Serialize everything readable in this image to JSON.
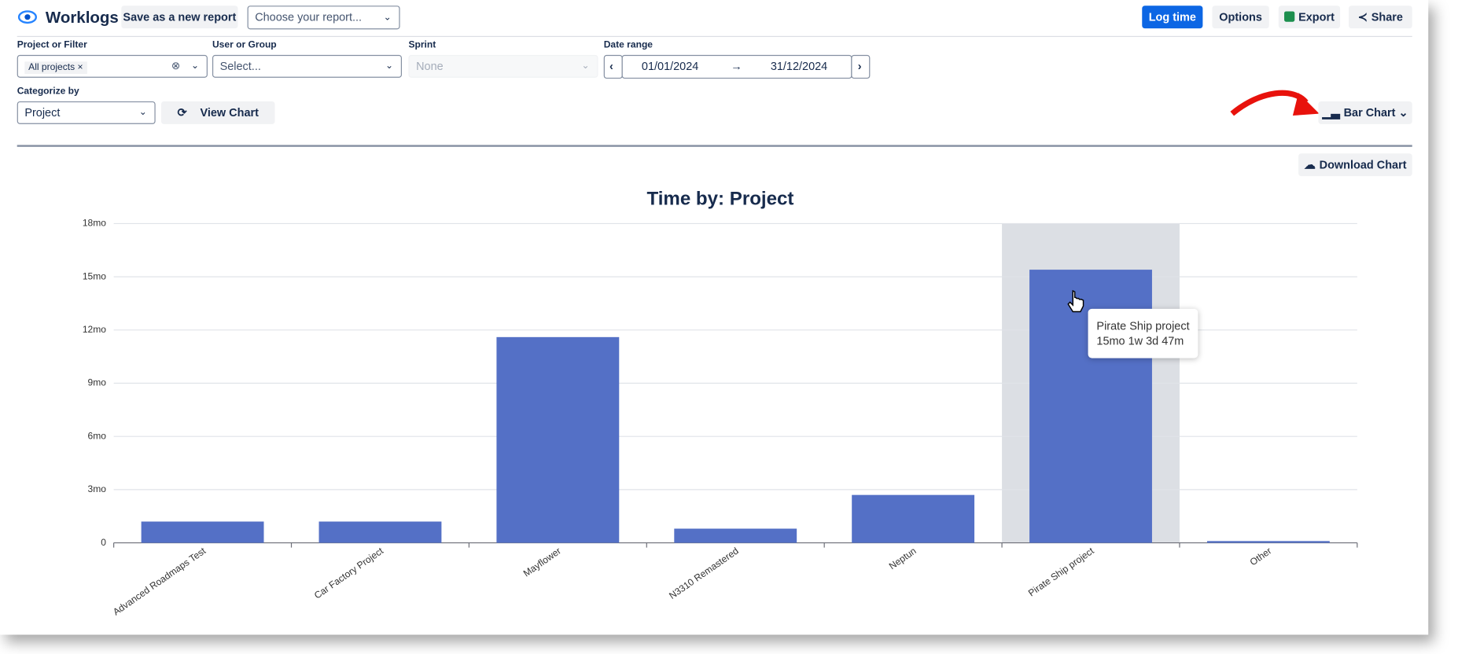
{
  "header": {
    "app_title": "Worklogs",
    "save_button": "Save as a new report",
    "report_select": "Choose your report...",
    "log_time": "Log time",
    "options": "Options",
    "export": "Export",
    "share": "Share"
  },
  "filters": {
    "project_label": "Project or Filter",
    "project_value": "All projects",
    "user_label": "User or Group",
    "user_value": "Select...",
    "sprint_label": "Sprint",
    "sprint_value": "None",
    "date_label": "Date range",
    "date_from": "01/01/2024",
    "date_to": "31/12/2024",
    "categorize_label": "Categorize by",
    "categorize_value": "Project",
    "view_chart": "View Chart",
    "chart_type": "Bar Chart",
    "download": "Download Chart"
  },
  "chart_data": {
    "type": "bar",
    "title": "Time by: Project",
    "categories": [
      "Advanced Roadmaps Test",
      "Car Factory Project",
      "Mayflower",
      "N3310 Remastered",
      "Neptun",
      "Pirate Ship project",
      "Other"
    ],
    "values": [
      1.2,
      1.2,
      11.6,
      0.8,
      2.7,
      15.4,
      0.1
    ],
    "color": "#5470c6",
    "ylim": [
      0,
      18
    ],
    "yticks": [
      0,
      {
        "value": 3,
        "label": "3mo"
      },
      {
        "value": 6,
        "label": "6mo"
      },
      {
        "value": 9,
        "label": "9mo"
      },
      {
        "value": 12,
        "label": "12mo"
      },
      {
        "value": 15,
        "label": "15mo"
      },
      {
        "value": 18,
        "label": "18mo"
      }
    ],
    "grid": true,
    "tooltip": {
      "label": "Pirate Ship project",
      "value_label": "15mo 1w 3d 47m"
    }
  }
}
